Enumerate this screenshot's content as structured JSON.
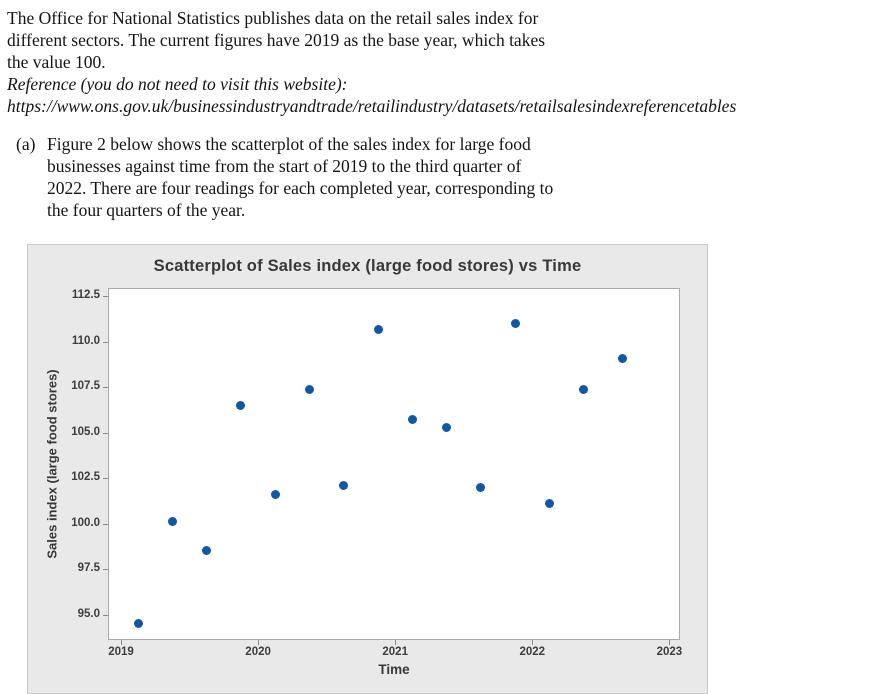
{
  "intro": {
    "lines": [
      "The Office for National Statistics publishes data on the retail sales index for",
      "different sectors. The current figures have 2019 as the base year, which takes",
      "the value 100."
    ],
    "reference_lines": [
      "Reference (you do not need to visit this website):",
      "https://www.ons.gov.uk/businessindustryandtrade/retailindustry/datasets/retailsalesindexreferencetables"
    ]
  },
  "part_a": {
    "label": "(a)",
    "lines": [
      "Figure 2 below shows the scatterplot of the sales index for large food",
      "businesses against time from the start of 2019 to the third quarter of",
      "2022. There are four readings for each completed year, corresponding to",
      "the four quarters of the year."
    ]
  },
  "chart_data": {
    "type": "scatter",
    "title": "Scatterplot of Sales index (large food stores) vs Time",
    "xlabel": "Time",
    "ylabel": "Sales index (large food stores)",
    "x_tick_labels": [
      "2019",
      "2020",
      "2021",
      "2022",
      "2023"
    ],
    "x_tick_values": [
      2019,
      2020,
      2021,
      2022,
      2023
    ],
    "y_tick_labels": [
      "95.0",
      "97.5",
      "100.0",
      "102.5",
      "105.0",
      "107.5",
      "110.0",
      "112.5"
    ],
    "y_tick_values": [
      95.0,
      97.5,
      100.0,
      102.5,
      105.0,
      107.5,
      110.0,
      112.5
    ],
    "xlim": [
      2018.9,
      2023.08
    ],
    "ylim": [
      93.6,
      113.0
    ],
    "grid": false,
    "legend": false,
    "point_color": "#1057a7",
    "panel_background": "#e9e9e9",
    "plot_background": "#ffffff",
    "points": [
      {
        "quarter": "2019 Q1",
        "x": 2019.125,
        "y": 94.5
      },
      {
        "quarter": "2019 Q2",
        "x": 2019.375,
        "y": 100.1
      },
      {
        "quarter": "2019 Q3",
        "x": 2019.625,
        "y": 98.5
      },
      {
        "quarter": "2019 Q4",
        "x": 2019.875,
        "y": 106.5
      },
      {
        "quarter": "2020 Q1",
        "x": 2020.125,
        "y": 101.6
      },
      {
        "quarter": "2020 Q2",
        "x": 2020.375,
        "y": 107.4
      },
      {
        "quarter": "2020 Q3",
        "x": 2020.625,
        "y": 102.1
      },
      {
        "quarter": "2020 Q4",
        "x": 2020.875,
        "y": 110.7
      },
      {
        "quarter": "2021 Q1",
        "x": 2021.125,
        "y": 105.7
      },
      {
        "quarter": "2021 Q2",
        "x": 2021.375,
        "y": 105.3
      },
      {
        "quarter": "2021 Q3",
        "x": 2021.625,
        "y": 102.0
      },
      {
        "quarter": "2021 Q4",
        "x": 2021.875,
        "y": 111.0
      },
      {
        "quarter": "2022 Q1",
        "x": 2022.125,
        "y": 101.1
      },
      {
        "quarter": "2022 Q2",
        "x": 2022.375,
        "y": 107.4
      },
      {
        "quarter": "2022 Q3",
        "x": 2022.66,
        "y": 109.1
      }
    ]
  }
}
